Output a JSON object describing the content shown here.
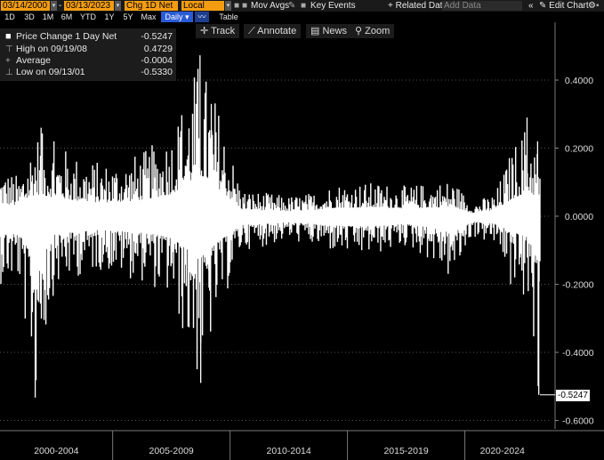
{
  "toolbar": {
    "start_date": "03/14/2000",
    "end_date": "03/13/2023",
    "field": "Chg 1D Net",
    "currency": "Local CCY",
    "mov_avgs": "Mov Avgs",
    "key_events": "Key Events",
    "related_data": "+ Related Dat",
    "add_data_placeholder": "Add Data",
    "edit_chart": "Edit Chart",
    "periods": [
      "1D",
      "3D",
      "1M",
      "6M",
      "YTD",
      "1Y",
      "5Y",
      "Max"
    ],
    "frequency": "Daily",
    "table": "Table"
  },
  "chart_tools": {
    "track": "Track",
    "annotate": "Annotate",
    "news": "News",
    "zoom": "Zoom"
  },
  "legend": {
    "series": "Price Change 1 Day Net",
    "last": "-0.5247",
    "high_label": "High on 09/19/08",
    "high_value": "0.4729",
    "avg_label": "Average",
    "avg_value": "-0.0004",
    "low_label": "Low on 09/13/01",
    "low_value": "-0.5330"
  },
  "chart_data": {
    "type": "bar",
    "title": "",
    "xlabel": "",
    "ylabel": "",
    "ylim": [
      -0.62,
      0.55
    ],
    "y_ticks": [
      0.4,
      0.2,
      0.0,
      -0.2,
      -0.4,
      -0.6
    ],
    "y_tick_labels": [
      "0.4000",
      "0.2000",
      "0.0000",
      "-0.2000",
      "-0.4000",
      "-0.6000"
    ],
    "x_range": [
      2000.2,
      2023.2
    ],
    "x_categories": [
      "2000-2004",
      "2005-2009",
      "2010-2014",
      "2015-2019",
      "2020-2024"
    ],
    "last_value_label": "-0.5247",
    "series": [
      {
        "values_description": "daily net change, approx envelope (year, min, max)",
        "envelope": [
          [
            2000.2,
            -0.2,
            0.15
          ],
          [
            2001.0,
            -0.2,
            0.12
          ],
          [
            2001.7,
            -0.533,
            0.26
          ],
          [
            2002.5,
            -0.22,
            0.22
          ],
          [
            2003.5,
            -0.18,
            0.18
          ],
          [
            2004.5,
            -0.16,
            0.16
          ],
          [
            2005.5,
            -0.18,
            0.17
          ],
          [
            2006.5,
            -0.2,
            0.2
          ],
          [
            2007.5,
            -0.25,
            0.26
          ],
          [
            2008.7,
            -0.5,
            0.4729
          ],
          [
            2009.5,
            -0.3,
            0.33
          ],
          [
            2010.5,
            -0.1,
            0.08
          ],
          [
            2011.5,
            -0.09,
            0.07
          ],
          [
            2012.5,
            -0.07,
            0.06
          ],
          [
            2013.5,
            -0.09,
            0.07
          ],
          [
            2014.5,
            -0.11,
            0.1
          ],
          [
            2015.5,
            -0.12,
            0.1
          ],
          [
            2016.5,
            -0.11,
            0.1
          ],
          [
            2017.5,
            -0.09,
            0.09
          ],
          [
            2018.5,
            -0.13,
            0.1
          ],
          [
            2019.5,
            -0.2,
            0.11
          ],
          [
            2020.3,
            -0.06,
            0.04
          ],
          [
            2021.3,
            -0.09,
            0.07
          ],
          [
            2022.0,
            -0.18,
            0.2
          ],
          [
            2022.7,
            -0.25,
            0.29
          ],
          [
            2023.1,
            -0.5247,
            0.22
          ]
        ]
      }
    ]
  }
}
